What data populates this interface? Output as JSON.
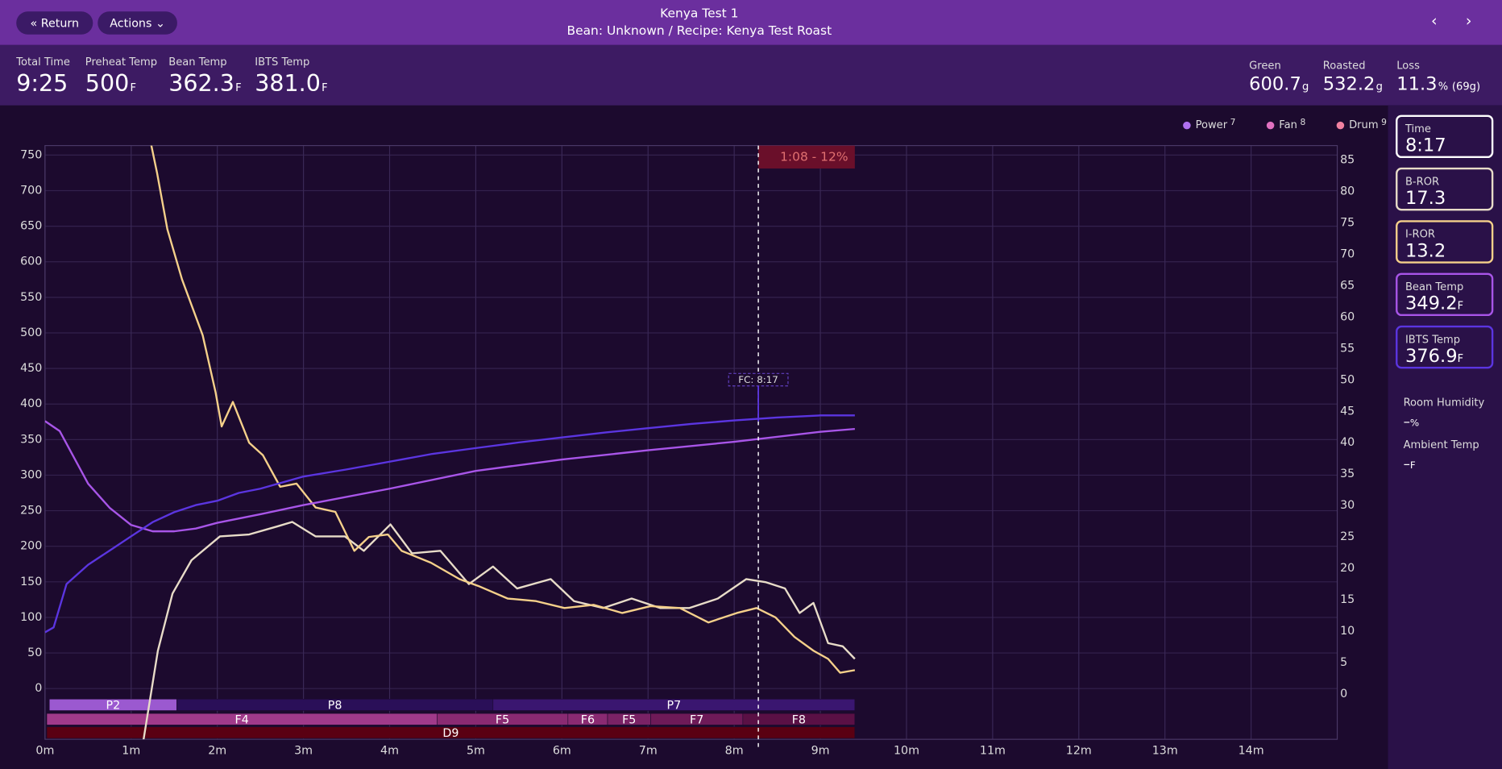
{
  "header": {
    "title": "Kenya Test 1",
    "subtitle": "Bean: Unknown / Recipe: Kenya Test Roast",
    "buttons": [
      "Return",
      "Actions"
    ]
  },
  "stats_left": [
    {
      "label": "Total Time",
      "value": "9:25"
    },
    {
      "label": "Preheat Temp",
      "value": 500,
      "unit": "F"
    },
    {
      "label": "Bean Temp",
      "value": 362.3,
      "unit": "F"
    },
    {
      "label": "IBTS Temp",
      "value": "381.0",
      "unit": "F"
    }
  ],
  "stats_right": [
    {
      "label": "Green",
      "value": 600.7,
      "unit": "g"
    },
    {
      "label": "Roasted",
      "value": 532.2,
      "unit": "g"
    },
    {
      "label": "Loss",
      "value": 11.3,
      "unit": "%",
      "note": "(69g)"
    }
  ],
  "time_card": {
    "label": "Time",
    "value": "8:17"
  },
  "environment": [
    {
      "label": "Room Humidity",
      "value": "–",
      "unit": "%"
    },
    {
      "label": "Ambient Temp",
      "value": "–",
      "unit": "F"
    }
  ],
  "chart_data": {
    "type": "line",
    "grid": true,
    "xlim": [
      0,
      15
    ],
    "xticks": [
      {
        "value": 0,
        "label": "0m"
      },
      {
        "value": 1,
        "label": "1m"
      },
      {
        "value": 2,
        "label": "2m"
      },
      {
        "value": 3,
        "label": "3m"
      },
      {
        "value": 4,
        "label": "4m"
      },
      {
        "value": 5,
        "label": "5m"
      },
      {
        "value": 6,
        "label": "6m"
      },
      {
        "value": 7,
        "label": "7m"
      },
      {
        "value": 8,
        "label": "8m"
      },
      {
        "value": 9,
        "label": "9m"
      },
      {
        "value": 10,
        "label": "10m"
      },
      {
        "value": 11,
        "label": "11m"
      },
      {
        "value": 12,
        "label": "12m"
      },
      {
        "value": 13,
        "label": "13m"
      },
      {
        "value": 14,
        "label": "14m"
      }
    ],
    "ylim": [
      -71.4,
      763.4
    ],
    "yticks": [
      0,
      50,
      100,
      150,
      200,
      250,
      300,
      350,
      400,
      450,
      500,
      550,
      600,
      650,
      700,
      750
    ],
    "y2lim": [
      -7.2,
      87.3
    ],
    "y2ticks": [
      0,
      5,
      10,
      15,
      20,
      25,
      30,
      35,
      40,
      45,
      50,
      55,
      60,
      65,
      70,
      75,
      80,
      85
    ],
    "legend": [
      {
        "name": "Power",
        "value": 7,
        "color": "#b070f0"
      },
      {
        "name": "Fan",
        "value": 8,
        "color": "#e070c0"
      },
      {
        "name": "Drum",
        "value": 9,
        "color": "#f080a0"
      }
    ],
    "series": [
      {
        "name": "B-ROR",
        "color": "#e8dcc8",
        "axis": "y2",
        "readout": 17.3,
        "x": [
          1.14,
          1.31,
          1.48,
          1.7,
          2.03,
          2.37,
          2.7,
          2.87,
          3.14,
          3.48,
          3.7,
          4.01,
          4.26,
          4.59,
          4.92,
          5.2,
          5.48,
          5.87,
          6.14,
          6.48,
          6.81,
          7.14,
          7.48,
          7.81,
          8.14,
          8.37,
          8.59,
          8.76,
          8.92,
          9.09,
          9.26,
          9.4
        ],
        "values": [
          -7.6,
          6.9,
          16,
          21.3,
          25.1,
          25.4,
          26.7,
          27.4,
          25.1,
          25.1,
          22.8,
          27,
          22.4,
          22.8,
          17.5,
          20.3,
          16.8,
          18.3,
          14.8,
          13.7,
          15.2,
          13.7,
          13.7,
          15.2,
          18.3,
          17.8,
          16.8,
          12.9,
          14.5,
          8.1,
          7.6,
          5.6
        ]
      },
      {
        "name": "I-ROR",
        "color": "#f5d08a",
        "axis": "y2",
        "readout": 13.2,
        "x": [
          1.23,
          1.3,
          1.42,
          1.59,
          1.83,
          1.98,
          2.05,
          2.18,
          2.37,
          2.53,
          2.73,
          2.92,
          3.14,
          3.37,
          3.59,
          3.76,
          3.98,
          4.14,
          4.48,
          4.81,
          5.03,
          5.37,
          5.7,
          6.03,
          6.37,
          6.7,
          7.03,
          7.37,
          7.7,
          8.03,
          8.26,
          8.48,
          8.7,
          8.92,
          9.09,
          9.23,
          9.4
        ],
        "values": [
          87.6,
          83,
          74,
          66,
          57.1,
          48,
          42.6,
          46.5,
          40,
          38,
          33,
          33.5,
          29.7,
          29,
          22.8,
          25,
          25.4,
          22.8,
          20.9,
          18.3,
          17.2,
          15.2,
          14.8,
          13.7,
          14.2,
          12.9,
          14,
          13.7,
          11.4,
          12.9,
          13.7,
          12.2,
          9.1,
          6.9,
          5.6,
          3.4,
          3.8
        ]
      },
      {
        "name": "Bean Temp",
        "color": "#a855e8",
        "unit": "F",
        "readout": 349.2,
        "x": [
          0,
          0.17,
          0.5,
          0.75,
          1,
          1.25,
          1.5,
          1.75,
          2,
          2.5,
          3,
          4,
          5,
          6,
          7,
          8,
          9,
          9.4
        ],
        "values": [
          376,
          362,
          288,
          254,
          230,
          221,
          221,
          225,
          233,
          245,
          258,
          281,
          306,
          322,
          335,
          347,
          361,
          365
        ]
      },
      {
        "name": "IBTS Temp",
        "color": "#5b35e0",
        "unit": "F",
        "readout": 376.9,
        "x": [
          0,
          0.1,
          0.25,
          0.5,
          0.75,
          1,
          1.25,
          1.5,
          1.75,
          2,
          2.25,
          2.5,
          3,
          3.5,
          4,
          4.5,
          5,
          5.5,
          6,
          6.5,
          7,
          7.5,
          8,
          8.5,
          9,
          9.4
        ],
        "values": [
          79,
          86,
          147,
          174,
          194,
          214,
          234,
          248,
          258,
          264,
          275,
          281,
          298,
          308,
          319,
          330,
          338,
          346,
          353,
          360,
          366,
          372,
          377,
          381,
          384,
          384
        ]
      }
    ],
    "phases": {
      "power": [
        {
          "label": "P2",
          "start": 0.05,
          "end": 1.53,
          "color": "#9b59d0"
        },
        {
          "label": "P8",
          "start": 1.53,
          "end": 5.2,
          "color": "#2a0f58"
        },
        {
          "label": "P7",
          "start": 5.2,
          "end": 9.4,
          "color": "#3a1670"
        }
      ],
      "fan": [
        {
          "label": "F4",
          "start": 0.02,
          "end": 4.55,
          "color": "#a03a8a"
        },
        {
          "label": "F5",
          "start": 4.55,
          "end": 6.07,
          "color": "#8a2a72"
        },
        {
          "label": "F6",
          "start": 6.07,
          "end": 6.53,
          "color": "#8a2a72"
        },
        {
          "label": "F5",
          "start": 6.53,
          "end": 7.03,
          "color": "#7a2265"
        },
        {
          "label": "F7",
          "start": 7.03,
          "end": 8.1,
          "color": "#6e1a58"
        },
        {
          "label": "F8",
          "start": 8.1,
          "end": 9.4,
          "color": "#5a1045"
        }
      ],
      "drum": [
        {
          "label": "D9",
          "start": 0.02,
          "end": 9.4,
          "color": "#5a0012"
        }
      ]
    },
    "events": [
      {
        "label": "FC: 8:17",
        "x": 8.28
      }
    ],
    "annotation": {
      "label": "1:08 - 12%",
      "start": 8.28,
      "end": 9.4
    }
  }
}
